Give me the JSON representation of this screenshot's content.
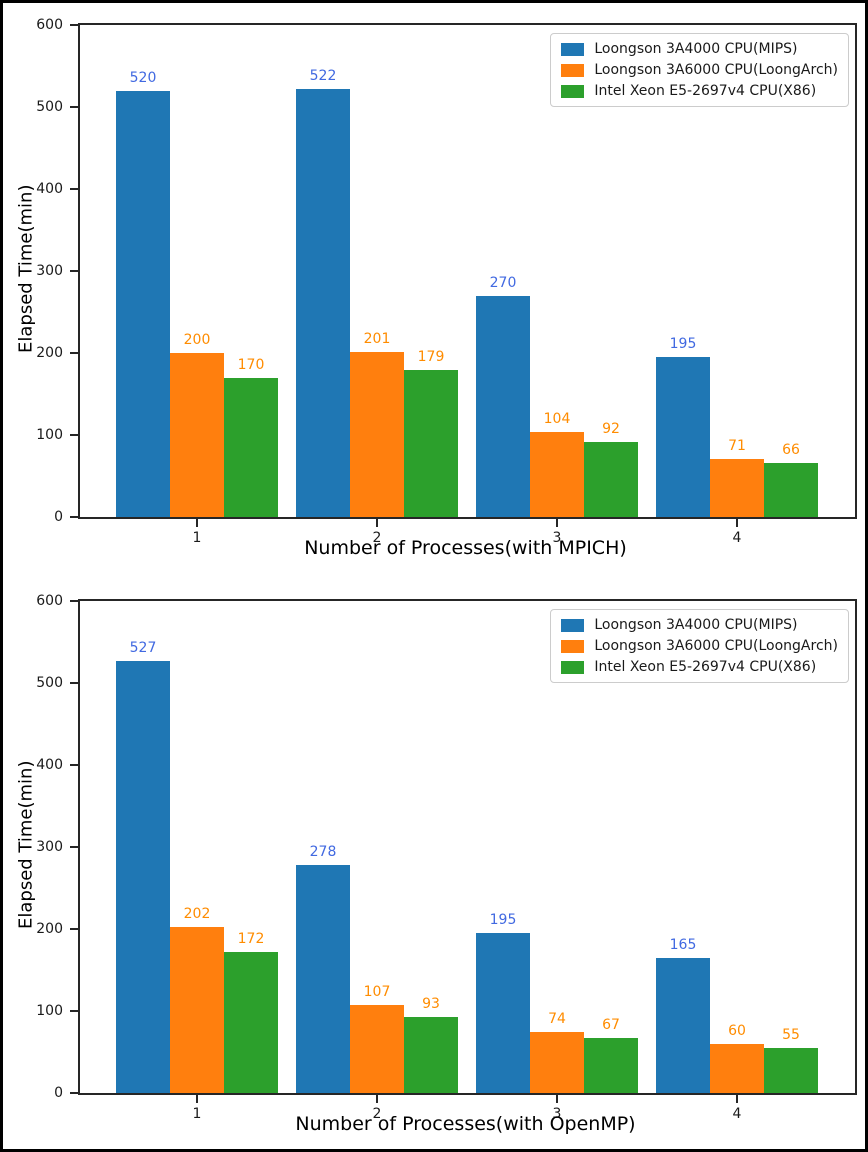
{
  "figure": {
    "background": "#ffffff",
    "border_color": "#000000"
  },
  "style": {
    "series_colors": [
      "#1f77b4",
      "#ff7f0e",
      "#2ca02c"
    ],
    "value_label_colors": [
      "#4169e1",
      "#ff8c00",
      "#ff8c00"
    ],
    "axis_color": "#262626",
    "tick_label_color": "#1a1a1a",
    "legend_border_color": "#cccccc"
  },
  "legend": {
    "entries": [
      "Loongson 3A4000 CPU(MIPS)",
      "Loongson 3A6000 CPU(LoongArch)",
      "Intel Xeon E5-2697v4 CPU(X86)"
    ]
  },
  "chart_data": [
    {
      "type": "bar",
      "title": "",
      "xlabel": "Number of Processes(with MPICH)",
      "ylabel": "Elapsed Time(min)",
      "categories": [
        "1",
        "2",
        "3",
        "4"
      ],
      "series": [
        {
          "name": "Loongson 3A4000 CPU(MIPS)",
          "color": "#1f77b4",
          "values": [
            520,
            522,
            270,
            195
          ]
        },
        {
          "name": "Loongson 3A6000 CPU(LoongArch)",
          "color": "#ff7f0e",
          "values": [
            200,
            201,
            104,
            71
          ]
        },
        {
          "name": "Intel Xeon E5-2697v4 CPU(X86)",
          "color": "#2ca02c",
          "values": [
            170,
            179,
            92,
            66
          ]
        }
      ],
      "ylim": [
        0,
        600
      ],
      "yticks": [
        0,
        100,
        200,
        300,
        400,
        500,
        600
      ],
      "grid": false,
      "legend_position": "upper right",
      "bar_value_labels": true
    },
    {
      "type": "bar",
      "title": "",
      "xlabel": "Number of Processes(with OpenMP)",
      "ylabel": "Elapsed Time(min)",
      "categories": [
        "1",
        "2",
        "3",
        "4"
      ],
      "series": [
        {
          "name": "Loongson 3A4000 CPU(MIPS)",
          "color": "#1f77b4",
          "values": [
            527,
            278,
            195,
            165
          ]
        },
        {
          "name": "Loongson 3A6000 CPU(LoongArch)",
          "color": "#ff7f0e",
          "values": [
            202,
            107,
            74,
            60
          ]
        },
        {
          "name": "Intel Xeon E5-2697v4 CPU(X86)",
          "color": "#2ca02c",
          "values": [
            172,
            93,
            67,
            55
          ]
        }
      ],
      "ylim": [
        0,
        600
      ],
      "yticks": [
        0,
        100,
        200,
        300,
        400,
        500,
        600
      ],
      "grid": false,
      "legend_position": "upper right",
      "bar_value_labels": true
    }
  ]
}
